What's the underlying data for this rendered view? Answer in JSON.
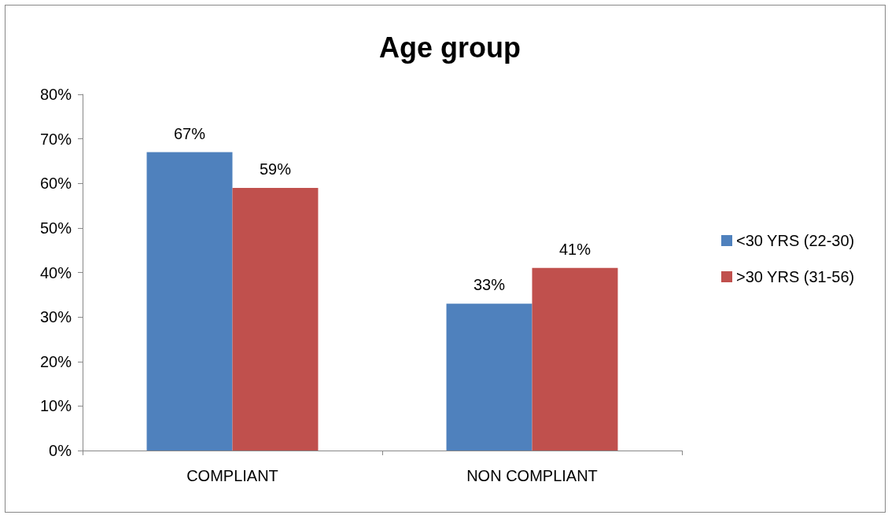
{
  "chart_data": {
    "type": "bar",
    "title": "Age group",
    "categories": [
      "COMPLIANT",
      "NON COMPLIANT"
    ],
    "series": [
      {
        "name": "<30 YRS (22-30)",
        "color": "#4f81bd",
        "values": [
          67,
          33
        ],
        "value_labels": [
          "67%",
          "33%"
        ]
      },
      {
        "name": ">30 YRS (31-56)",
        "color": "#c0504d",
        "values": [
          59,
          41
        ],
        "value_labels": [
          "59%",
          "41%"
        ]
      }
    ],
    "ylim": [
      0,
      80
    ],
    "yticks": [
      {
        "value": 0,
        "label": "0%"
      },
      {
        "value": 10,
        "label": "10%"
      },
      {
        "value": 20,
        "label": "20%"
      },
      {
        "value": 30,
        "label": "30%"
      },
      {
        "value": 40,
        "label": "40%"
      },
      {
        "value": 50,
        "label": "50%"
      },
      {
        "value": 60,
        "label": "60%"
      },
      {
        "value": 70,
        "label": "70%"
      },
      {
        "value": 80,
        "label": "80%"
      }
    ],
    "grid": false,
    "legend": "right"
  }
}
